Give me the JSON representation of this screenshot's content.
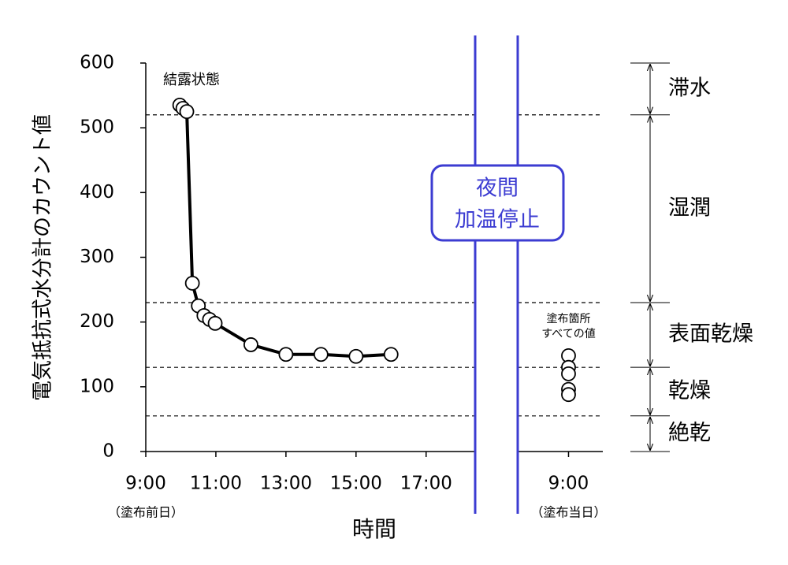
{
  "chart_data": {
    "type": "line",
    "y_label": "電気抵抗式水分計のカウント値",
    "x_label": "時間",
    "ylim": [
      0,
      600
    ],
    "yticks": [
      0,
      100,
      200,
      300,
      400,
      500,
      600
    ],
    "xlim": [
      9,
      33.97
    ],
    "x_break": [
      18.4,
      31.55
    ],
    "xticks": [
      {
        "value": 9,
        "label": "9:00",
        "sublabel": "（塗布前日）"
      },
      {
        "value": 11,
        "label": "11:00"
      },
      {
        "value": 13,
        "label": "13:00"
      },
      {
        "value": 15,
        "label": "15:00"
      },
      {
        "value": 17,
        "label": "17:00"
      },
      {
        "value": 33,
        "label": "9:00",
        "sublabel": "（塗布当日）"
      }
    ],
    "series": [
      {
        "color": "#000000",
        "line": true,
        "x": [
          9.97,
          10.06,
          10.17,
          10.33,
          10.5,
          10.66,
          10.82,
          10.98,
          12.0,
          13.0,
          14.0,
          15.0,
          16.0
        ],
        "values": [
          535,
          530,
          525,
          260,
          225,
          210,
          204,
          198,
          165,
          150,
          150,
          147,
          150
        ]
      },
      {
        "color": "#000000",
        "line": false,
        "x": [
          33,
          33,
          33,
          33,
          33
        ],
        "values": [
          148,
          130,
          120,
          96,
          88
        ]
      }
    ],
    "hlines": [
      520,
      230,
      130,
      55
    ],
    "zones": [
      "滞水",
      "湿潤",
      "表面乾燥",
      "乾燥",
      "絶乾"
    ],
    "annotations": {
      "condensation": "結露状態",
      "all_points": [
        "塗布箇所",
        "すべての値"
      ],
      "night": [
        "夜間",
        "加温停止"
      ]
    },
    "break_color": "#3c3cd2"
  }
}
